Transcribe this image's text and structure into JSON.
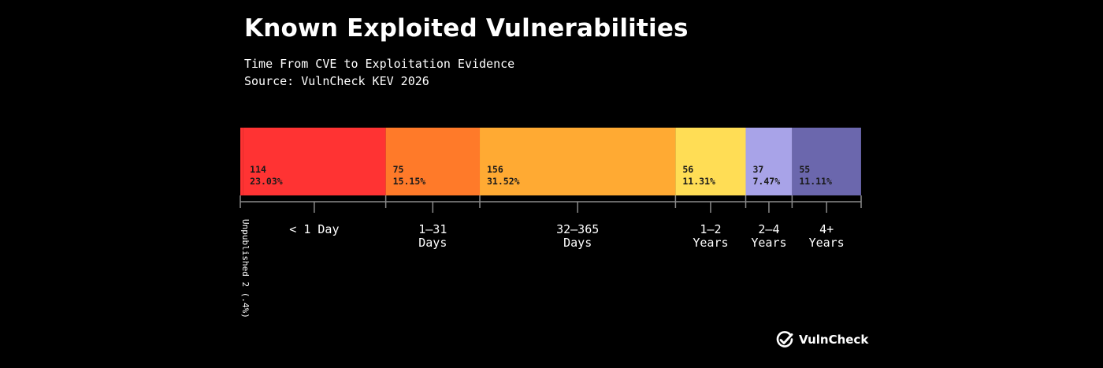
{
  "header": {
    "title": "Known Exploited Vulnerabilities",
    "subtitle_line1": "Time From CVE to Exploitation Evidence",
    "subtitle_line2": "Source: VulnCheck KEV 2026"
  },
  "chart_data": {
    "type": "bar",
    "orientation": "horizontal-stacked",
    "title": "Known Exploited Vulnerabilities",
    "subtitle": "Time From CVE to Exploitation Evidence",
    "source": "Source: VulnCheck KEV 2026",
    "total_percent": 100,
    "segments": [
      {
        "key": "unpublished",
        "category": "Unpublished",
        "value": 2,
        "percent": 0.4,
        "label_value": "",
        "label_percent": "",
        "axis_label": [
          "Unpublished 2 (.4%)"
        ],
        "color": "#ff3333",
        "vertical_label": true
      },
      {
        "key": "lt1day",
        "category": "< 1 Day",
        "value": 114,
        "percent": 23.03,
        "label_value": "114",
        "label_percent": "23.03%",
        "axis_label": [
          "< 1 Day"
        ],
        "color": "#ff3333"
      },
      {
        "key": "d1to31",
        "category": "1–31 Days",
        "value": 75,
        "percent": 15.15,
        "label_value": "75",
        "label_percent": "15.15%",
        "axis_label": [
          "1–31",
          "Days"
        ],
        "color": "#ff7a29"
      },
      {
        "key": "d32to365",
        "category": "32–365 Days",
        "value": 156,
        "percent": 31.52,
        "label_value": "156",
        "label_percent": "31.52%",
        "axis_label": [
          "32–365",
          "Days"
        ],
        "color": "#ffaa33"
      },
      {
        "key": "y1to2",
        "category": "1–2 Years",
        "value": 56,
        "percent": 11.31,
        "label_value": "56",
        "label_percent": "11.31%",
        "axis_label": [
          "1–2",
          "Years"
        ],
        "color": "#ffdd55"
      },
      {
        "key": "y2to4",
        "category": "2–4 Years",
        "value": 37,
        "percent": 7.47,
        "label_value": "37",
        "label_percent": "7.47%",
        "axis_label": [
          "2–4",
          "Years"
        ],
        "color": "#a8a3e8"
      },
      {
        "key": "y4plus",
        "category": "4+ Years",
        "value": 55,
        "percent": 11.11,
        "label_value": "55",
        "label_percent": "11.11%",
        "axis_label": [
          "4+",
          "Years"
        ],
        "color": "#6b67ad"
      }
    ]
  },
  "branding": {
    "logo_text": "VulnCheck",
    "logo_icon": "checkmark-circle-icon"
  }
}
